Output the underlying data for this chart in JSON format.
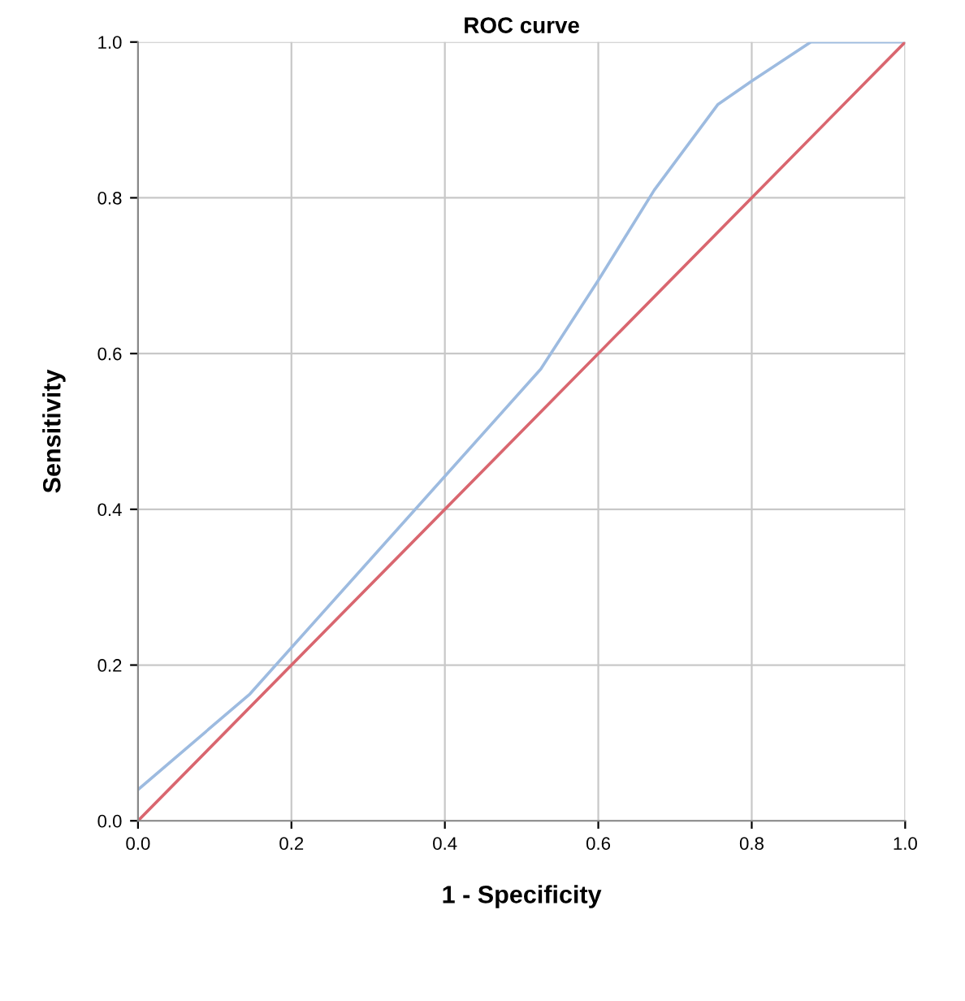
{
  "chart_data": {
    "type": "line",
    "title": "ROC curve",
    "xlabel": "1 - Specificity",
    "ylabel": "Sensitivity",
    "series": [
      {
        "color": "#9dbbe0",
        "x": [
          0,
          0.146,
          0.525,
          0.6,
          0.673,
          0.756,
          0.8,
          0.877,
          1.0
        ],
        "values": [
          0.04,
          0.163,
          0.58,
          0.694,
          0.81,
          0.92,
          0.95,
          1.0,
          1.0
        ]
      },
      {
        "color": "#d9666f",
        "x": [
          0,
          1.0
        ],
        "values": [
          0,
          1.0
        ]
      }
    ],
    "xlim": [
      0,
      1.0
    ],
    "ylim": [
      0,
      1.0
    ],
    "xticks": [
      {
        "value": 0,
        "label": "0.0"
      },
      0.2,
      0.4,
      0.6,
      0.8,
      {
        "value": 1,
        "label": "1.0"
      }
    ],
    "yticks": [
      {
        "value": 0,
        "label": "0.0"
      },
      0.2,
      0.4,
      0.6,
      0.8,
      {
        "value": 1,
        "label": "1.0"
      }
    ],
    "grid": true,
    "marker": "none",
    "line_style": "solid"
  }
}
